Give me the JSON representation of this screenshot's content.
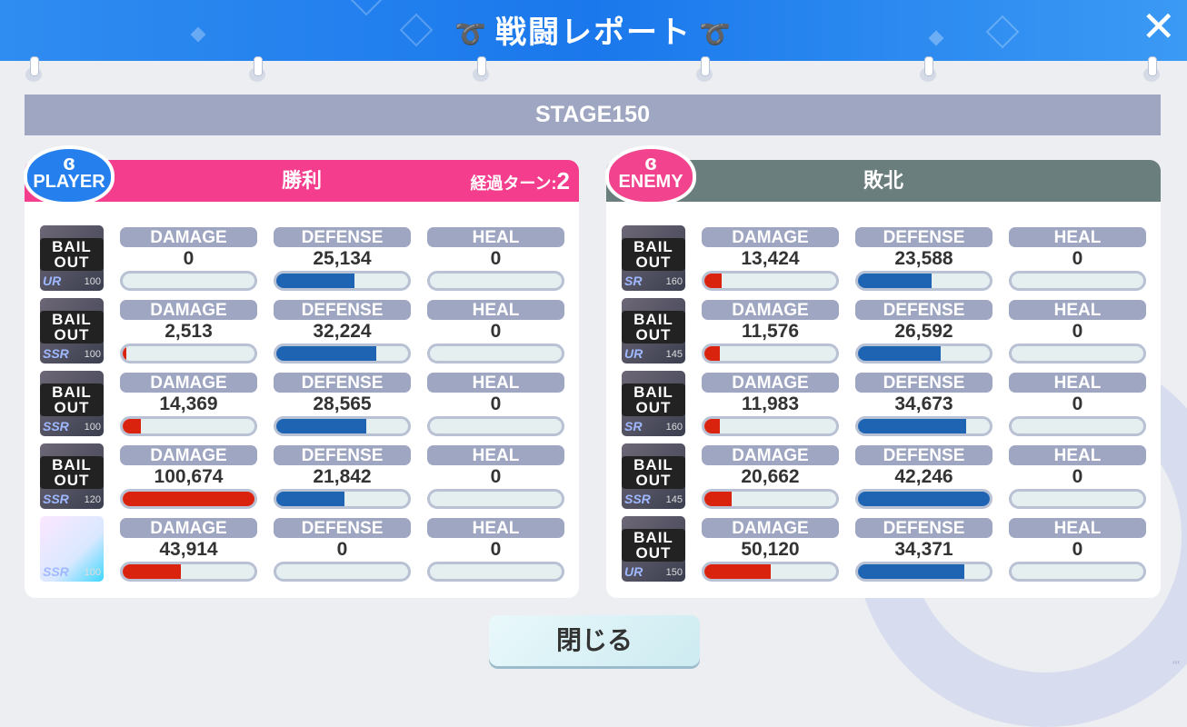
{
  "header": {
    "title": "戦闘レポート",
    "close_icon": "close-x-icon"
  },
  "stage": "STAGE150",
  "stat_labels": [
    "DAMAGE",
    "DEFENSE",
    "HEAL"
  ],
  "colors": {
    "player": "#f43d8c",
    "enemy": "#6b7e7e",
    "damage_fill": "#d9230f",
    "defense_fill": "#1f63b3"
  },
  "player": {
    "badge": "PLAYER",
    "result": "勝利",
    "turn_label": "経過ターン:",
    "turn": "2",
    "members": [
      {
        "avatar": "BAIL OUT",
        "rarity": "UR",
        "level": "100",
        "damage": "0",
        "defense": "25,134",
        "heal": "0",
        "damage_pct": 0,
        "defense_pct": 59,
        "heal_pct": 0
      },
      {
        "avatar": "BAIL OUT",
        "rarity": "SSR",
        "level": "100",
        "damage": "2,513",
        "defense": "32,224",
        "heal": "0",
        "damage_pct": 2.5,
        "defense_pct": 76,
        "heal_pct": 0
      },
      {
        "avatar": "BAIL OUT",
        "rarity": "SSR",
        "level": "100",
        "damage": "14,369",
        "defense": "28,565",
        "heal": "0",
        "damage_pct": 14,
        "defense_pct": 68,
        "heal_pct": 0
      },
      {
        "avatar": "BAIL OUT",
        "rarity": "SSR",
        "level": "120",
        "damage": "100,674",
        "defense": "21,842",
        "heal": "0",
        "damage_pct": 100,
        "defense_pct": 52,
        "heal_pct": 0
      },
      {
        "avatar": "",
        "rarity": "SSR",
        "level": "100",
        "damage": "43,914",
        "defense": "0",
        "heal": "0",
        "damage_pct": 44,
        "defense_pct": 0,
        "heal_pct": 0
      }
    ]
  },
  "enemy": {
    "badge": "ENEMY",
    "result": "敗北",
    "members": [
      {
        "avatar": "BAIL OUT",
        "rarity": "SR",
        "level": "160",
        "damage": "13,424",
        "defense": "23,588",
        "heal": "0",
        "damage_pct": 13,
        "defense_pct": 56,
        "heal_pct": 0
      },
      {
        "avatar": "BAIL OUT",
        "rarity": "UR",
        "level": "145",
        "damage": "11,576",
        "defense": "26,592",
        "heal": "0",
        "damage_pct": 11.5,
        "defense_pct": 63,
        "heal_pct": 0
      },
      {
        "avatar": "BAIL OUT",
        "rarity": "SR",
        "level": "160",
        "damage": "11,983",
        "defense": "34,673",
        "heal": "0",
        "damage_pct": 12,
        "defense_pct": 82,
        "heal_pct": 0
      },
      {
        "avatar": "BAIL OUT",
        "rarity": "SSR",
        "level": "145",
        "damage": "20,662",
        "defense": "42,246",
        "heal": "0",
        "damage_pct": 20.5,
        "defense_pct": 100,
        "heal_pct": 0
      },
      {
        "avatar": "BAIL OUT",
        "rarity": "UR",
        "level": "150",
        "damage": "50,120",
        "defense": "34,371",
        "heal": "0",
        "damage_pct": 50,
        "defense_pct": 81,
        "heal_pct": 0
      }
    ]
  },
  "close_button": "閉じる"
}
